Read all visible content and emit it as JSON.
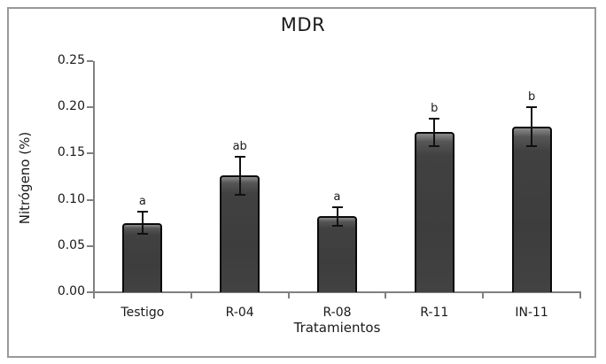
{
  "chart_data": {
    "type": "bar",
    "title": "MDR",
    "xlabel": "Tratamientos",
    "ylabel": "Nitrógeno (%)",
    "categories": [
      "Testigo",
      "R-04",
      "R-08",
      "R-11",
      "IN-11"
    ],
    "values": [
      0.075,
      0.126,
      0.082,
      0.173,
      0.179
    ],
    "errors": [
      0.012,
      0.021,
      0.01,
      0.015,
      0.021
    ],
    "sig_letters": [
      "a",
      "ab",
      "a",
      "b",
      "b"
    ],
    "ylim": [
      0,
      0.25
    ],
    "ytick_step": 0.05,
    "ytick_labels": [
      "0.00",
      "0.05",
      "0.10",
      "0.15",
      "0.20",
      "0.25"
    ],
    "grid": false,
    "legend": "none",
    "bar_color": "#414141",
    "bar_border_color": "#0a0a0a",
    "error_bar_color": "#111111",
    "axis_color": "#808080",
    "frame_color": "#999999",
    "text_color": "#1a1a1a",
    "background_color": "#ffffff"
  }
}
